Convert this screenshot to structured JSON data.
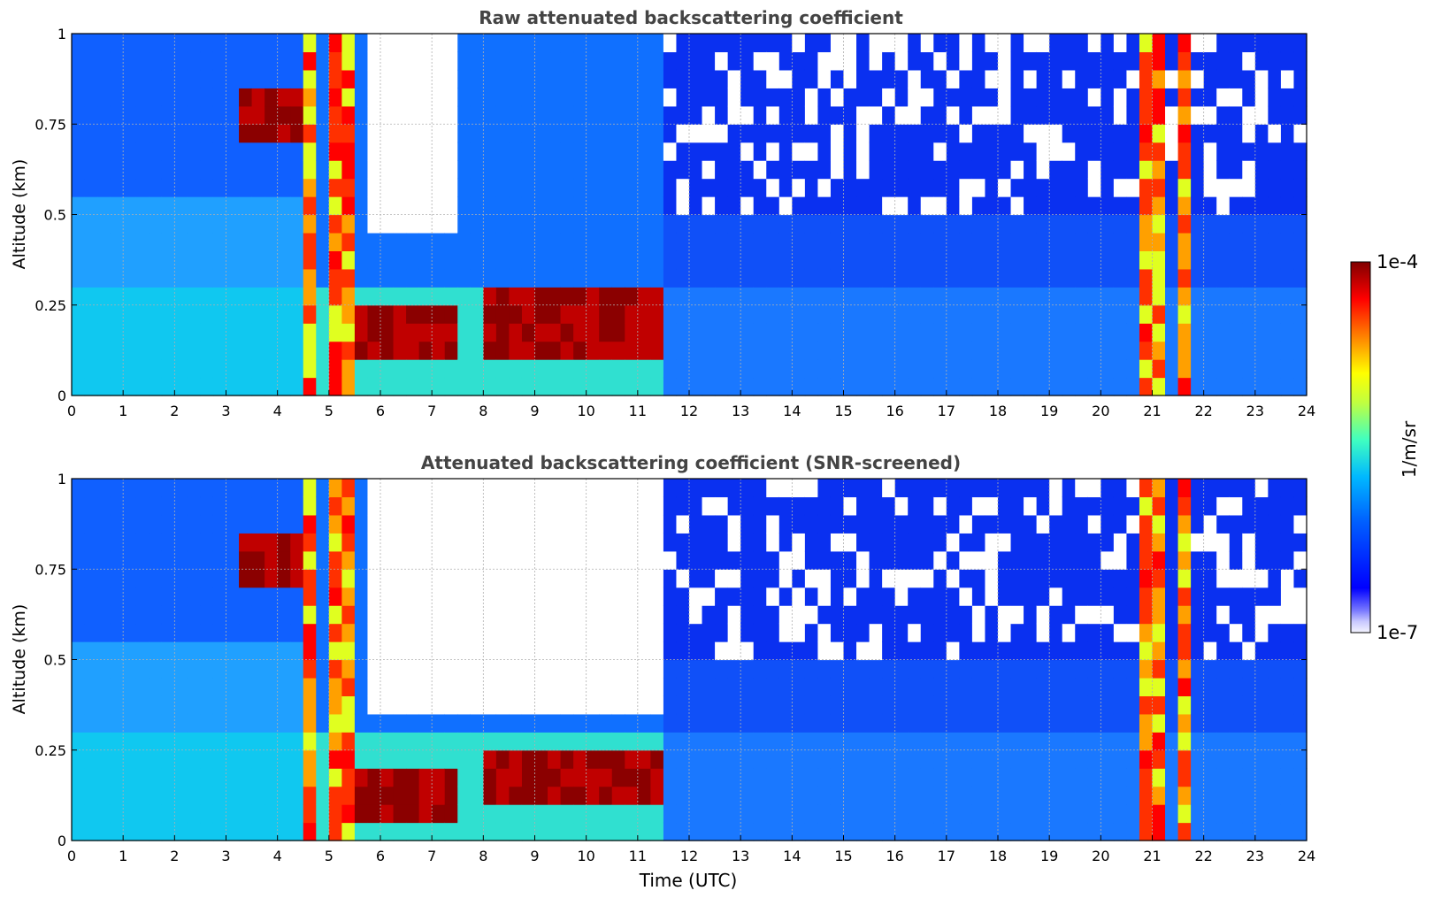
{
  "chart_data": [
    {
      "type": "heatmap",
      "title": "Raw attenuated backscattering coefficient",
      "xlabel": "",
      "ylabel": "Altitude (km)",
      "xlim": [
        0,
        24
      ],
      "ylim": [
        0,
        1
      ],
      "x_ticks": [
        "0",
        "1",
        "2",
        "3",
        "4",
        "5",
        "6",
        "7",
        "8",
        "9",
        "10",
        "11",
        "12",
        "13",
        "14",
        "15",
        "16",
        "17",
        "18",
        "19",
        "20",
        "21",
        "22",
        "23",
        "24"
      ],
      "y_ticks": [
        "0",
        "0.25",
        "0.5",
        "0.75",
        "1"
      ],
      "grid": true,
      "colorscale": "log",
      "value_range": [
        "1e-7",
        "1e-4"
      ],
      "features": {
        "clear_white_gap": [
          [
            5.8,
            7.5,
            0.45,
            1.0
          ]
        ],
        "strong_cloud_layers": [
          [
            3.3,
            4.8,
            0.72,
            0.85
          ],
          [
            5.2,
            7.5,
            0.08,
            0.25
          ],
          [
            8.0,
            11.5,
            0.1,
            0.28
          ]
        ],
        "saturated_columns": [
          [
            4.4,
            4.8
          ],
          [
            4.9,
            5.6
          ],
          [
            20.7,
            21.2
          ],
          [
            21.6,
            21.8
          ]
        ]
      }
    },
    {
      "type": "heatmap",
      "title": "Attenuated backscattering coefficient (SNR-screened)",
      "xlabel": "Time (UTC)",
      "ylabel": "Altitude (km)",
      "xlim": [
        0,
        24
      ],
      "ylim": [
        0,
        1
      ],
      "x_ticks": [
        "0",
        "1",
        "2",
        "3",
        "4",
        "5",
        "6",
        "7",
        "8",
        "9",
        "10",
        "11",
        "12",
        "13",
        "14",
        "15",
        "16",
        "17",
        "18",
        "19",
        "20",
        "21",
        "22",
        "23",
        "24"
      ],
      "y_ticks": [
        "0",
        "0.25",
        "0.5",
        "0.75",
        "1"
      ],
      "grid": true,
      "colorscale": "log",
      "value_range": [
        "1e-7",
        "1e-4"
      ],
      "features": {
        "clear_white_gap": [
          [
            5.8,
            11.5,
            0.35,
            1.0
          ]
        ],
        "strong_cloud_layers": [
          [
            3.3,
            4.8,
            0.72,
            0.85
          ],
          [
            5.2,
            7.5,
            0.05,
            0.22
          ],
          [
            8.0,
            11.5,
            0.1,
            0.25
          ]
        ],
        "saturated_columns": [
          [
            4.4,
            4.8
          ],
          [
            4.9,
            5.6
          ],
          [
            20.7,
            21.2
          ],
          [
            21.6,
            21.8
          ]
        ]
      }
    }
  ],
  "colorbar": {
    "label": "1/m/sr",
    "max_label": "1e-4",
    "min_label": "1e-7",
    "colormap": "jet"
  }
}
